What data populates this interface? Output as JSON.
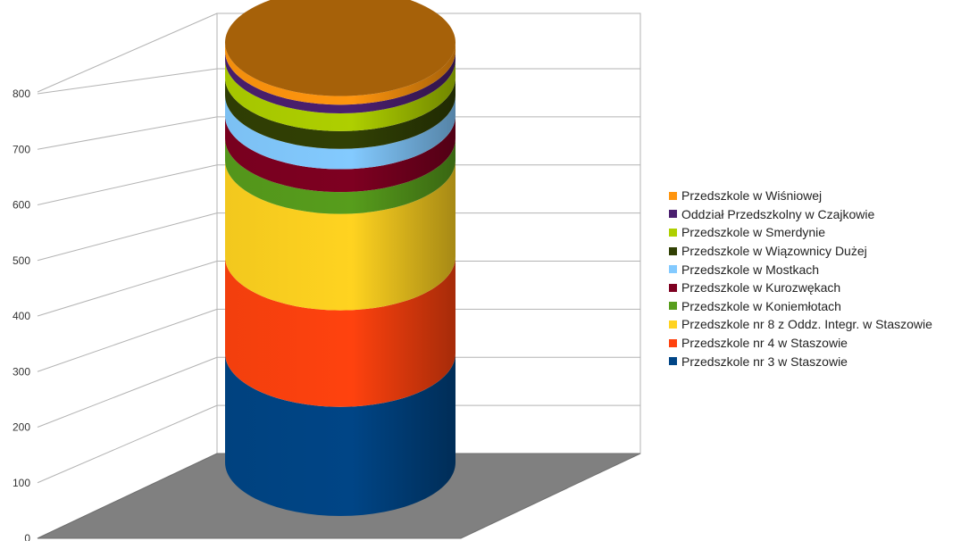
{
  "chart_data": {
    "type": "bar",
    "style": "3d-stacked-cylinder",
    "categories": [
      ""
    ],
    "ylim": [
      0,
      800
    ],
    "yticks": [
      0,
      100,
      200,
      300,
      400,
      500,
      600,
      700,
      800
    ],
    "grid": true,
    "legend_position": "right",
    "series": [
      {
        "name": "Przedszkole nr 3 w Staszowie",
        "values": [
          215
        ],
        "color": "#004586"
      },
      {
        "name": "Przedszkole nr 4 w Staszowie",
        "values": [
          190
        ],
        "color": "#ff420e"
      },
      {
        "name": "Przedszkole nr 8  z Oddz. Integr. w Staszowie",
        "values": [
          190
        ],
        "color": "#ffd320"
      },
      {
        "name": "Przedszkole w Koniemłotach",
        "values": [
          43
        ],
        "color": "#579d1c"
      },
      {
        "name": "Przedszkole w Kurozwękach",
        "values": [
          45
        ],
        "color": "#7e0021"
      },
      {
        "name": "Przedszkole w Mostkach",
        "values": [
          40
        ],
        "color": "#83caff"
      },
      {
        "name": "Przedszkole  w Wiązownicy Dużej",
        "values": [
          35
        ],
        "color": "#314004"
      },
      {
        "name": "Przedszkole w Smerdynie",
        "values": [
          35
        ],
        "color": "#aecf00"
      },
      {
        "name": "Oddział Przedszkolny w Czajkowie",
        "values": [
          17
        ],
        "color": "#4b1f6f"
      },
      {
        "name": "Przedszkole w Wiśniowej",
        "values": [
          17
        ],
        "color": "#ff950e"
      }
    ]
  }
}
